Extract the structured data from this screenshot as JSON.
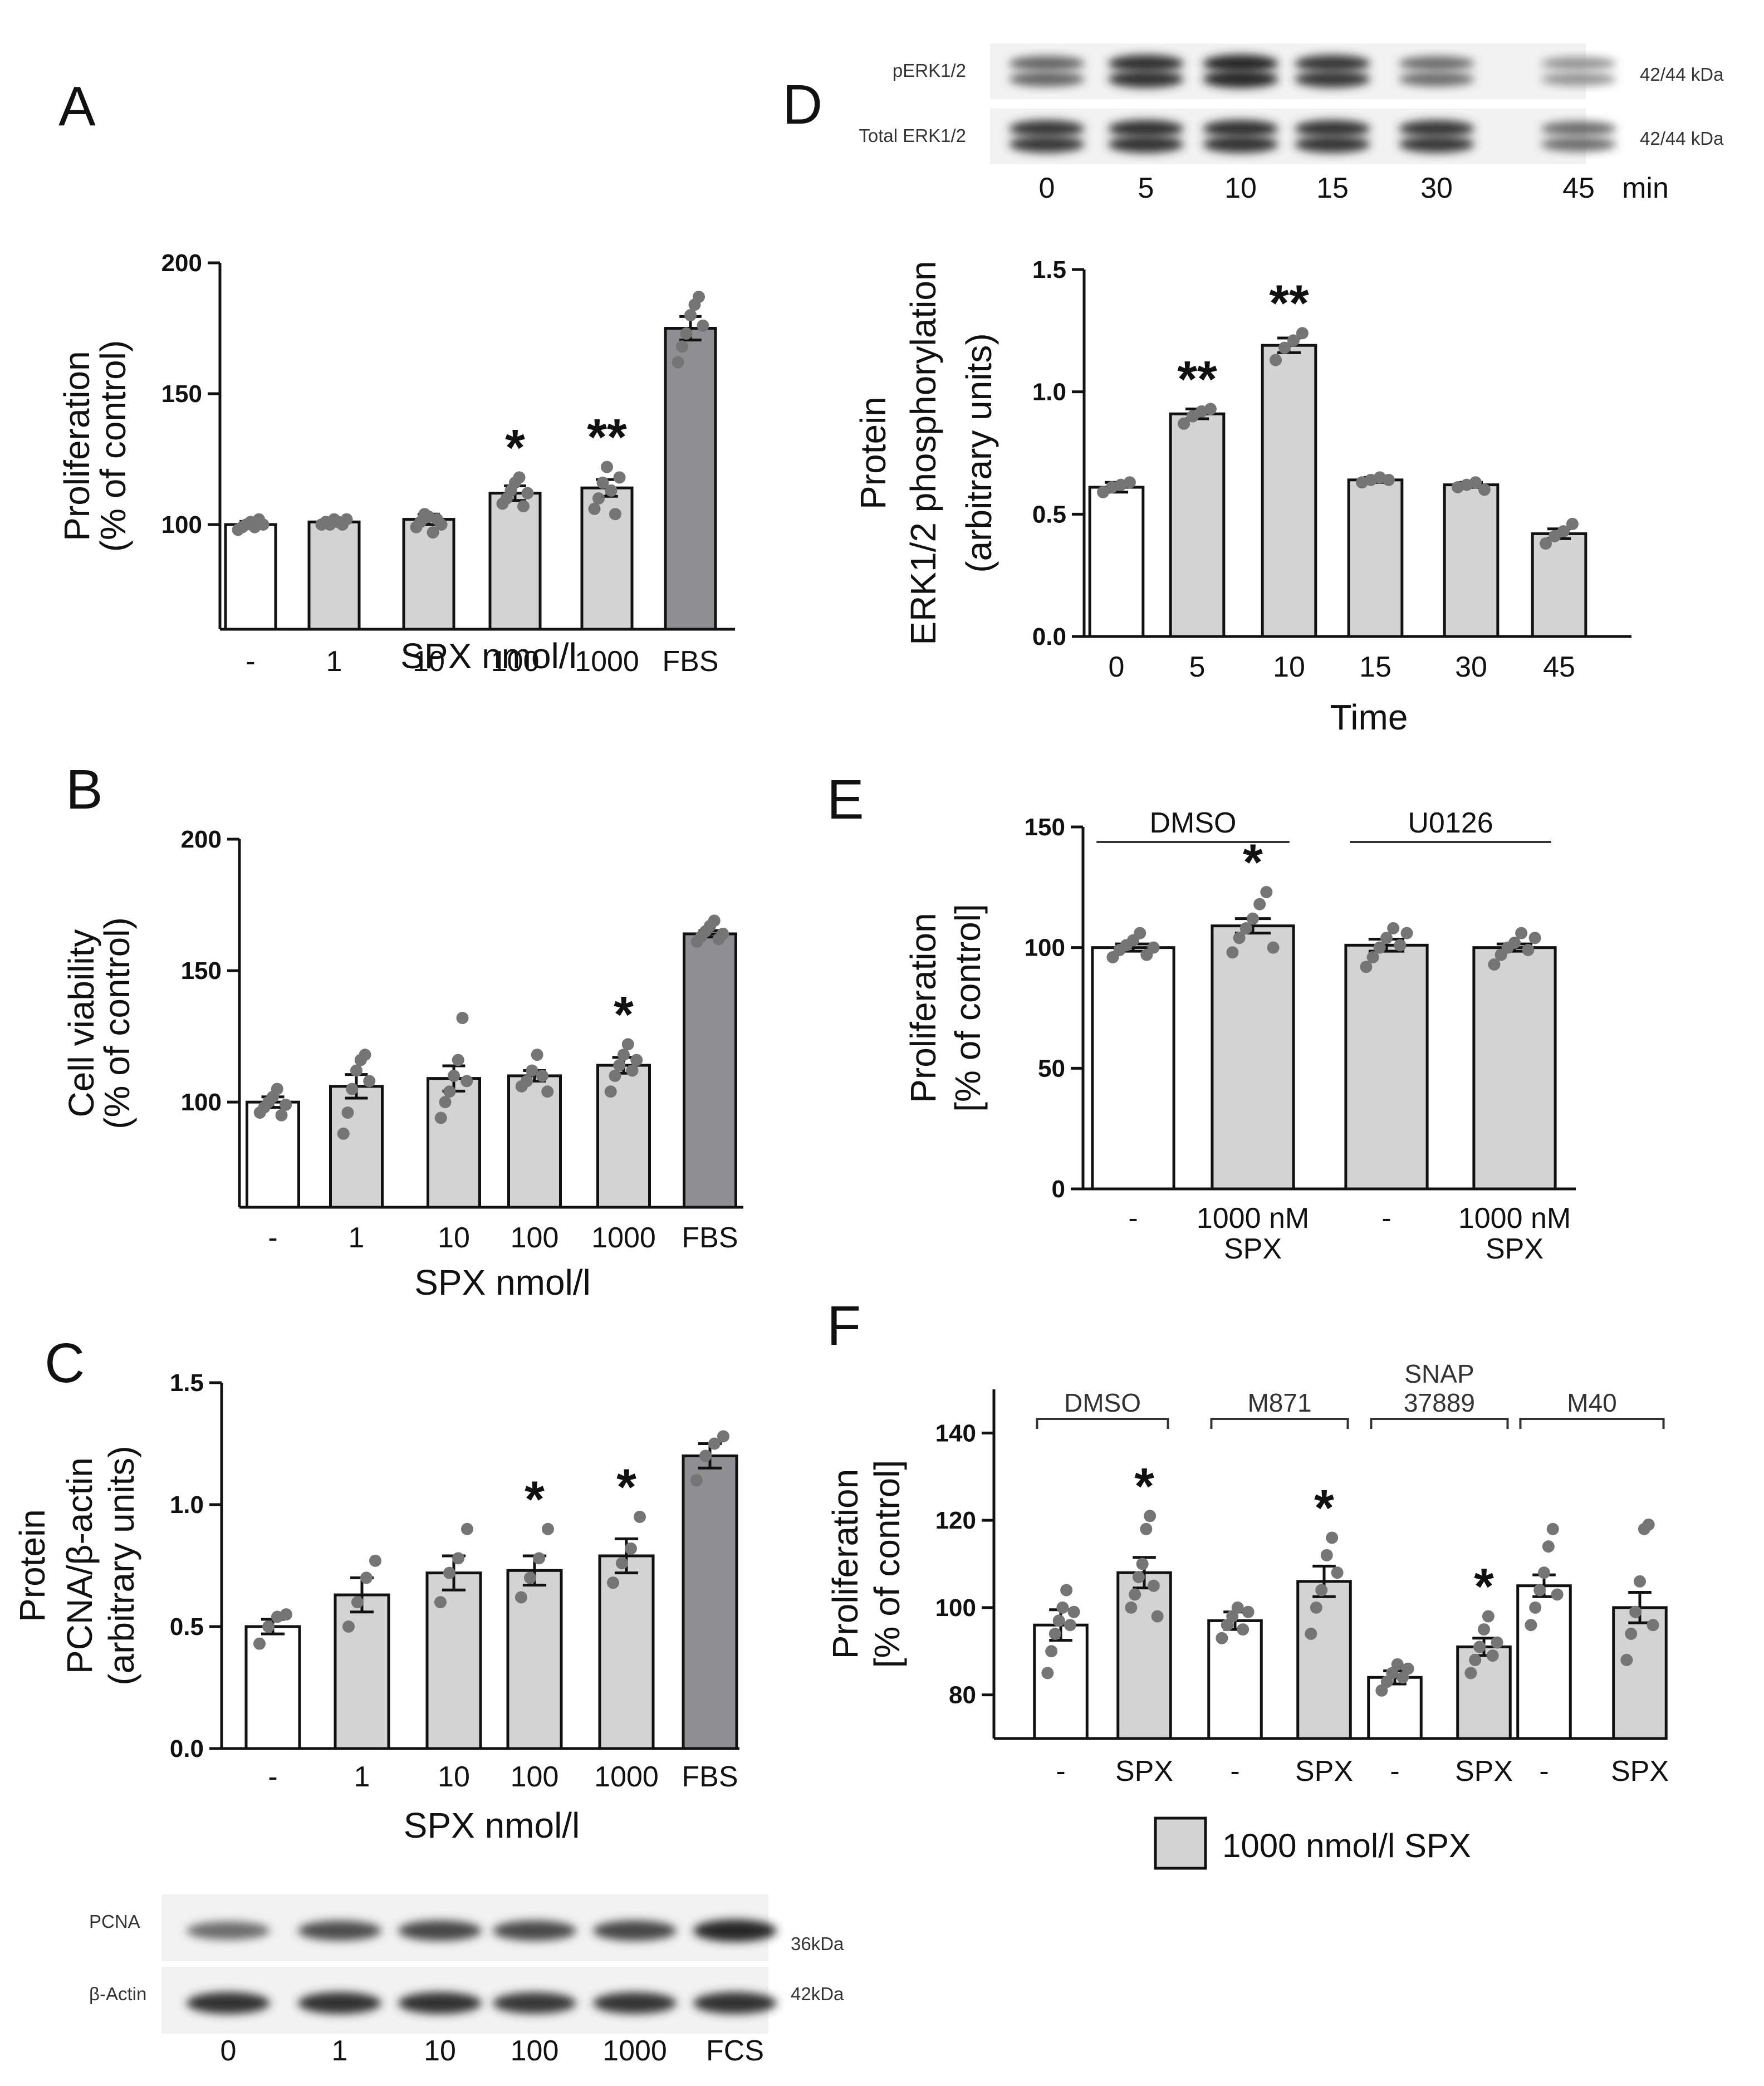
{
  "colors": {
    "white_bar": "#ffffff",
    "light_bar": "#d3d3d3",
    "dark_bar": "#8f8f93",
    "dot": "#757575",
    "stroke": "#111111"
  },
  "panels": {
    "A": "A",
    "B": "B",
    "C": "C",
    "D": "D",
    "E": "E",
    "F": "F"
  },
  "chart_data": [
    {
      "id": "A",
      "type": "bar",
      "title": "",
      "ylabel_lines": [
        "Proliferation",
        "(% of control)"
      ],
      "xlabel": "SPX nmol/l",
      "ylim": [
        60,
        200
      ],
      "yticks": [
        "100",
        "150",
        "200"
      ],
      "ytick_values": [
        100,
        150,
        200
      ],
      "categories": [
        "-",
        "1",
        "10",
        "100",
        "1000",
        "FBS"
      ],
      "values": [
        100,
        101,
        102,
        112,
        114,
        175
      ],
      "sem": [
        1.2,
        1.0,
        2.0,
        2.8,
        3.2,
        4.5
      ],
      "bar_colors": [
        "white",
        "light",
        "light",
        "light",
        "light",
        "dark"
      ],
      "significance": [
        "",
        "",
        "",
        "*",
        "**",
        ""
      ],
      "points": [
        [
          98,
          99,
          100,
          101,
          99,
          102,
          100
        ],
        [
          100,
          101,
          100,
          102,
          101,
          100,
          102
        ],
        [
          99,
          101,
          104,
          103,
          97,
          102,
          100
        ],
        [
          108,
          110,
          113,
          116,
          118,
          107,
          112
        ],
        [
          106,
          110,
          116,
          122,
          113,
          104,
          118
        ],
        [
          162,
          168,
          173,
          180,
          184,
          187,
          176
        ]
      ]
    },
    {
      "id": "B",
      "type": "bar",
      "ylabel_lines": [
        "Cell viability",
        "(% of control)"
      ],
      "xlabel": "SPX nmol/l",
      "ylim": [
        60,
        200
      ],
      "yticks": [
        "100",
        "150",
        "200"
      ],
      "ytick_values": [
        100,
        150,
        200
      ],
      "categories": [
        "-",
        "1",
        "10",
        "100",
        "1000",
        "FBS"
      ],
      "values": [
        100,
        106,
        109,
        110,
        114,
        164
      ],
      "sem": [
        2.0,
        4.5,
        4.8,
        2.0,
        3.0,
        1.2
      ],
      "bar_colors": [
        "white",
        "light",
        "light",
        "light",
        "light",
        "dark"
      ],
      "significance": [
        "",
        "",
        "",
        "",
        "*",
        ""
      ],
      "points": [
        [
          96,
          98,
          100,
          102,
          105,
          95,
          99
        ],
        [
          88,
          96,
          105,
          112,
          116,
          118,
          108
        ],
        [
          94,
          100,
          104,
          110,
          116,
          132,
          108
        ],
        [
          106,
          108,
          112,
          118,
          110,
          104
        ],
        [
          104,
          110,
          114,
          118,
          122,
          112,
          116
        ],
        [
          161,
          163,
          165,
          167,
          169,
          162,
          164
        ]
      ]
    },
    {
      "id": "C",
      "type": "bar",
      "ylabel_lines": [
        "Protein",
        "PCNA/β-actin",
        "(arbitrary units)"
      ],
      "xlabel": "SPX nmol/l",
      "ylim": [
        0,
        1.5
      ],
      "yticks": [
        "0.0",
        "0.5",
        "1.0",
        "1.5"
      ],
      "ytick_values": [
        0,
        0.5,
        1.0,
        1.5
      ],
      "categories": [
        "-",
        "1",
        "10",
        "100",
        "1000",
        "FBS"
      ],
      "values": [
        0.5,
        0.63,
        0.72,
        0.73,
        0.79,
        1.2
      ],
      "sem": [
        0.03,
        0.07,
        0.07,
        0.06,
        0.07,
        0.05
      ],
      "bar_colors": [
        "white",
        "light",
        "light",
        "light",
        "light",
        "dark"
      ],
      "significance": [
        "",
        "",
        "",
        "*",
        "*",
        ""
      ],
      "points": [
        [
          0.43,
          0.5,
          0.54,
          0.55
        ],
        [
          0.5,
          0.6,
          0.7,
          0.77
        ],
        [
          0.6,
          0.72,
          0.78,
          0.9
        ],
        [
          0.62,
          0.7,
          0.78,
          0.9
        ],
        [
          0.68,
          0.76,
          0.82,
          0.95
        ],
        [
          1.1,
          1.2,
          1.25,
          1.28
        ]
      ]
    },
    {
      "id": "D",
      "type": "bar",
      "ylabel_lines": [
        "Protein",
        "ERK1/2 phosphorylation",
        "(arbitrary units)"
      ],
      "xlabel": "Time",
      "ylim": [
        0,
        1.5
      ],
      "yticks": [
        "0.0",
        "0.5",
        "1.0",
        "1.5"
      ],
      "ytick_values": [
        0,
        0.5,
        1.0,
        1.5
      ],
      "categories": [
        "0",
        "5",
        "10",
        "15",
        "30",
        "45"
      ],
      "values": [
        0.61,
        0.91,
        1.19,
        0.64,
        0.62,
        0.42
      ],
      "sem": [
        0.02,
        0.02,
        0.03,
        0.01,
        0.01,
        0.02
      ],
      "bar_colors": [
        "white",
        "light",
        "light",
        "light",
        "light",
        "light"
      ],
      "significance": [
        "",
        "**",
        "**",
        "",
        "",
        ""
      ],
      "points": [
        [
          0.59,
          0.61,
          0.62,
          0.63
        ],
        [
          0.87,
          0.9,
          0.92,
          0.93
        ],
        [
          1.13,
          1.18,
          1.21,
          1.24
        ],
        [
          0.63,
          0.64,
          0.65,
          0.64
        ],
        [
          0.61,
          0.62,
          0.63,
          0.6
        ],
        [
          0.38,
          0.41,
          0.43,
          0.46
        ]
      ]
    },
    {
      "id": "E",
      "type": "bar",
      "ylabel_lines": [
        "Proliferation",
        "[% of control]"
      ],
      "xlabel": "",
      "ylim": [
        0,
        150
      ],
      "yticks": [
        "0",
        "50",
        "100",
        "150"
      ],
      "ytick_values": [
        0,
        50,
        100,
        150
      ],
      "categories": [
        "-",
        "1000 nM|SPX",
        "-",
        "1000 nM|SPX"
      ],
      "groups": [
        {
          "label": "DMSO",
          "bars": [
            0,
            1
          ]
        },
        {
          "label": "U0126",
          "bars": [
            2,
            3
          ]
        }
      ],
      "values": [
        100,
        109,
        101,
        100
      ],
      "sem": [
        1.5,
        3.0,
        2.5,
        1.5
      ],
      "bar_colors": [
        "white",
        "light",
        "light",
        "light"
      ],
      "significance": [
        "",
        "*",
        "",
        ""
      ],
      "points": [
        [
          96,
          99,
          101,
          103,
          106,
          97,
          100
        ],
        [
          98,
          104,
          108,
          112,
          118,
          123,
          100
        ],
        [
          92,
          96,
          100,
          104,
          108,
          101,
          106
        ],
        [
          93,
          97,
          100,
          102,
          106,
          99,
          104
        ]
      ]
    },
    {
      "id": "F",
      "type": "bar",
      "ylabel_lines": [
        "Proliferation",
        "[% of control]"
      ],
      "xlabel": "",
      "ylim": [
        70,
        150
      ],
      "yticks": [
        "80",
        "100",
        "120",
        "140"
      ],
      "ytick_values": [
        80,
        100,
        120,
        140
      ],
      "categories": [
        "-",
        "SPX",
        "-",
        "SPX",
        "-",
        "SPX",
        "-",
        "SPX"
      ],
      "groups": [
        {
          "label": "DMSO",
          "bars": [
            0,
            1
          ]
        },
        {
          "label": "M871",
          "bars": [
            2,
            3
          ]
        },
        {
          "label": "SNAP|37889",
          "bars": [
            4,
            5
          ]
        },
        {
          "label": "M40",
          "bars": [
            6,
            7
          ]
        }
      ],
      "values": [
        96,
        108,
        97,
        106,
        84,
        91,
        105,
        100
      ],
      "sem": [
        3.5,
        3.5,
        2.0,
        3.5,
        1.5,
        2.0,
        2.5,
        3.5
      ],
      "bar_colors": [
        "white",
        "light",
        "white",
        "light",
        "white",
        "light",
        "white",
        "light"
      ],
      "significance": [
        "",
        "*",
        "",
        "*",
        "",
        "*",
        "",
        ""
      ],
      "points": [
        [
          85,
          90,
          94,
          97,
          100,
          104,
          96,
          99
        ],
        [
          100,
          103,
          107,
          110,
          118,
          121,
          105,
          98
        ],
        [
          93,
          96,
          98,
          100,
          95,
          99
        ],
        [
          94,
          100,
          104,
          112,
          116,
          108
        ],
        [
          81,
          83,
          85,
          87,
          84,
          86
        ],
        [
          85,
          88,
          91,
          95,
          98,
          89,
          92
        ],
        [
          96,
          100,
          104,
          108,
          114,
          118,
          103
        ],
        [
          88,
          94,
          99,
          106,
          118,
          119,
          96
        ]
      ],
      "legend": "1000 nmol/l SPX"
    }
  ],
  "blots": {
    "C": {
      "rows": [
        {
          "label": "PCNA",
          "kda": "36kDa"
        },
        {
          "label": "β-Actin",
          "kda": "42kDa"
        }
      ],
      "lanes": [
        "0",
        "1",
        "10",
        "100",
        "1000",
        "FCS"
      ],
      "intensity": [
        [
          0.55,
          0.75,
          0.8,
          0.78,
          0.8,
          1.0
        ],
        [
          0.95,
          0.95,
          0.95,
          0.9,
          0.92,
          0.95
        ]
      ]
    },
    "D": {
      "rows": [
        {
          "label": "pERK1/2",
          "kda": "42/44 kDa"
        },
        {
          "label": "Total ERK1/2",
          "kda": "42/44 kDa"
        }
      ],
      "lanes": [
        "0",
        "5",
        "10",
        "15",
        "30",
        "45"
      ],
      "unit": "min",
      "intensity": [
        [
          0.6,
          0.95,
          1.0,
          0.9,
          0.55,
          0.3
        ],
        [
          0.9,
          0.95,
          0.95,
          0.92,
          0.9,
          0.55
        ]
      ]
    }
  }
}
